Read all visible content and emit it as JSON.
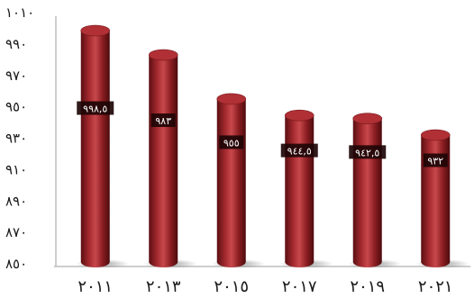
{
  "chart_data": {
    "type": "bar",
    "style": "3d-cylinder",
    "categories": [
      "٢٠١١",
      "٢٠١٣",
      "٢٠١٥",
      "٢٠١٧",
      "٢٠١٩",
      "٢٠٢١"
    ],
    "values": [
      998.5,
      983,
      955,
      944.5,
      942.5,
      932
    ],
    "data_labels": [
      "٩٩٨,٥",
      "٩٨٣",
      "٩٥٥",
      "٩٤٤,٥",
      "٩٤٢,٥",
      "٩٣٢"
    ],
    "y_ticks": [
      850,
      870,
      890,
      910,
      930,
      950,
      970,
      990,
      1010
    ],
    "y_tick_labels": [
      "٨٥٠",
      "٨٧٠",
      "٨٩٠",
      "٩١٠",
      "٩٣٠",
      "٩٥٠",
      "٩٧٠",
      "٩٩٠",
      "١٠١٠"
    ],
    "ylim": [
      850,
      1010
    ],
    "grid": false,
    "legend": "none",
    "title": "",
    "xlabel": "",
    "ylabel": "",
    "colors": {
      "bar_body": "#8b1e22",
      "bar_highlight": "#c8484c",
      "bar_shadow": "#5a0f12",
      "bar_top": "#b03035",
      "label_box": "#1e0506",
      "axis": "#bdbdbd"
    }
  }
}
